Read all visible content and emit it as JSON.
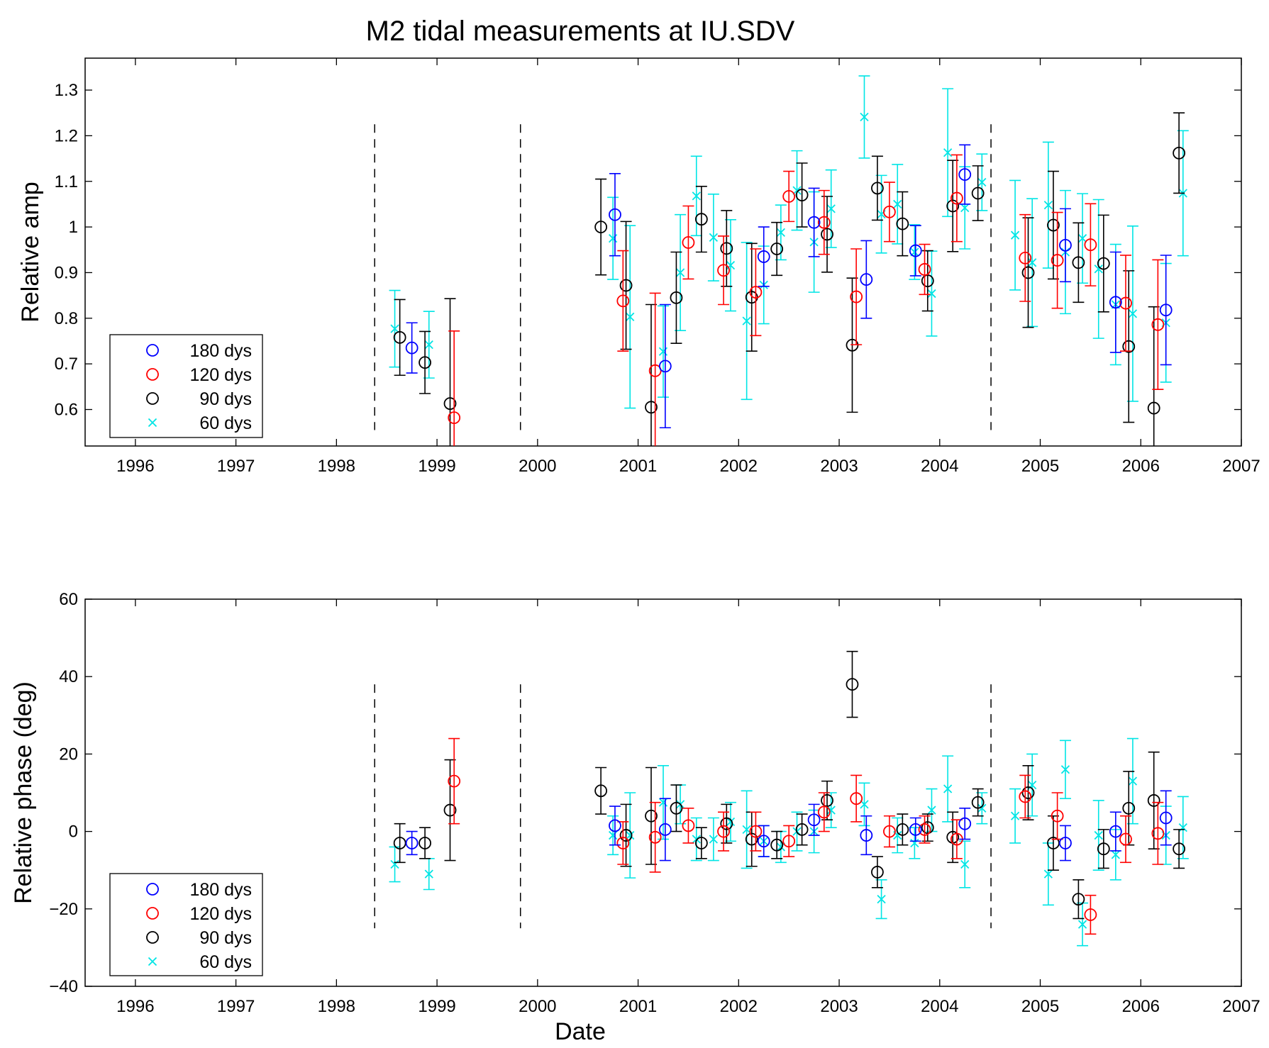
{
  "figure": {
    "title": "M2 tidal measurements at IU.SDV",
    "xlabel": "Date"
  },
  "colors": {
    "180 dys": "#0000ff",
    "120 dys": "#ff0000",
    "90 dys": "#000000",
    "60 dys": "#00e5e5",
    "divider": "#000000"
  },
  "chart_data": [
    {
      "type": "scatter",
      "title": "M2 tidal measurements at IU.SDV",
      "xlabel": "",
      "ylabel": "Relative amp",
      "xlim": [
        1995.5,
        2007
      ],
      "ylim": [
        0.52,
        1.37
      ],
      "xticks": [
        "1996",
        "1997",
        "1998",
        "1999",
        "2000",
        "2001",
        "2002",
        "2003",
        "2004",
        "2005",
        "2006",
        "2007"
      ],
      "yticks": [
        "0.6",
        "0.7",
        "0.8",
        "0.9",
        "1",
        "1.1",
        "1.2",
        "1.3"
      ],
      "grid": false,
      "legend": "bottom-left",
      "dividers": [
        1998.38,
        1999.83,
        2004.51
      ],
      "series": [
        {
          "name": "180 dys",
          "marker": "circle",
          "points": [
            [
              1998.75,
              0.735,
              0.055
            ],
            [
              2000.77,
              1.027,
              0.09
            ],
            [
              2001.27,
              0.695,
              0.135
            ],
            [
              2002.25,
              0.935,
              0.065
            ],
            [
              2002.75,
              1.01,
              0.075
            ],
            [
              2003.27,
              0.885,
              0.085
            ],
            [
              2003.76,
              0.948,
              0.055
            ],
            [
              2004.25,
              1.115,
              0.065
            ],
            [
              2005.25,
              0.96,
              0.08
            ],
            [
              2005.75,
              0.835,
              0.11
            ],
            [
              2006.25,
              0.818,
              0.12
            ]
          ]
        },
        {
          "name": "120 dys",
          "marker": "circle",
          "points": [
            [
              1999.17,
              0.582,
              0.19
            ],
            [
              2000.85,
              0.838,
              0.11
            ],
            [
              2001.17,
              0.685,
              0.17
            ],
            [
              2001.5,
              0.966,
              0.08
            ],
            [
              2001.85,
              0.905,
              0.075
            ],
            [
              2002.17,
              0.857,
              0.095
            ],
            [
              2002.5,
              1.067,
              0.055
            ],
            [
              2002.85,
              1.01,
              0.07
            ],
            [
              2003.17,
              0.847,
              0.105
            ],
            [
              2003.5,
              1.033,
              0.065
            ],
            [
              2003.85,
              0.907,
              0.055
            ],
            [
              2004.17,
              1.063,
              0.095
            ],
            [
              2004.85,
              0.932,
              0.095
            ],
            [
              2005.17,
              0.927,
              0.105
            ],
            [
              2005.5,
              0.961,
              0.09
            ],
            [
              2005.85,
              0.833,
              0.105
            ],
            [
              2006.17,
              0.786,
              0.142
            ]
          ]
        },
        {
          "name": "90 dys",
          "marker": "circle",
          "points": [
            [
              1998.63,
              0.758,
              0.083
            ],
            [
              1998.88,
              0.703,
              0.068
            ],
            [
              1999.13,
              0.613,
              0.23
            ],
            [
              2000.63,
              1.0,
              0.105
            ],
            [
              2000.88,
              0.872,
              0.14
            ],
            [
              2001.13,
              0.605,
              0.225
            ],
            [
              2001.38,
              0.845,
              0.1
            ],
            [
              2001.63,
              1.017,
              0.072
            ],
            [
              2001.88,
              0.953,
              0.083
            ],
            [
              2002.13,
              0.846,
              0.118
            ],
            [
              2002.38,
              0.952,
              0.058
            ],
            [
              2002.63,
              1.07,
              0.07
            ],
            [
              2002.88,
              0.984,
              0.083
            ],
            [
              2003.13,
              0.741,
              0.147
            ],
            [
              2003.38,
              1.085,
              0.07
            ],
            [
              2003.63,
              1.007,
              0.07
            ],
            [
              2003.88,
              0.882,
              0.066
            ],
            [
              2004.13,
              1.046,
              0.1
            ],
            [
              2004.38,
              1.074,
              0.06
            ],
            [
              2004.88,
              0.9,
              0.12
            ],
            [
              2005.13,
              1.004,
              0.118
            ],
            [
              2005.38,
              0.922,
              0.087
            ],
            [
              2005.63,
              0.92,
              0.106
            ],
            [
              2005.88,
              0.738,
              0.166
            ],
            [
              2006.13,
              0.603,
              0.222
            ],
            [
              2006.38,
              1.162,
              0.088
            ]
          ]
        },
        {
          "name": "60 dys",
          "marker": "x",
          "points": [
            [
              1998.58,
              0.777,
              0.084
            ],
            [
              1998.92,
              0.742,
              0.073
            ],
            [
              2000.75,
              0.975,
              0.09
            ],
            [
              2000.92,
              0.803,
              0.2
            ],
            [
              2001.25,
              0.727,
              0.1
            ],
            [
              2001.42,
              0.9,
              0.127
            ],
            [
              2001.58,
              1.068,
              0.087
            ],
            [
              2001.75,
              0.977,
              0.095
            ],
            [
              2001.92,
              0.916,
              0.1
            ],
            [
              2002.08,
              0.794,
              0.172
            ],
            [
              2002.25,
              0.873,
              0.085
            ],
            [
              2002.42,
              0.988,
              0.06
            ],
            [
              2002.58,
              1.08,
              0.087
            ],
            [
              2002.75,
              0.967,
              0.11
            ],
            [
              2002.92,
              1.04,
              0.085
            ],
            [
              2003.25,
              1.241,
              0.09
            ],
            [
              2003.42,
              1.028,
              0.085
            ],
            [
              2003.58,
              1.05,
              0.087
            ],
            [
              2003.75,
              0.945,
              0.06
            ],
            [
              2003.92,
              0.854,
              0.093
            ],
            [
              2004.08,
              1.163,
              0.14
            ],
            [
              2004.25,
              1.042,
              0.09
            ],
            [
              2004.42,
              1.098,
              0.062
            ],
            [
              2004.75,
              0.982,
              0.12
            ],
            [
              2004.92,
              0.922,
              0.14
            ],
            [
              2005.08,
              1.048,
              0.138
            ],
            [
              2005.25,
              0.945,
              0.135
            ],
            [
              2005.42,
              0.975,
              0.098
            ],
            [
              2005.58,
              0.908,
              0.152
            ],
            [
              2005.75,
              0.83,
              0.132
            ],
            [
              2005.92,
              0.81,
              0.192
            ],
            [
              2006.25,
              0.79,
              0.13
            ],
            [
              2006.42,
              1.074,
              0.137
            ]
          ]
        }
      ]
    },
    {
      "type": "scatter",
      "title": "",
      "xlabel": "Date",
      "ylabel": "Relative phase (deg)",
      "xlim": [
        1995.5,
        2007
      ],
      "ylim": [
        -40,
        60
      ],
      "xticks": [
        "1996",
        "1997",
        "1998",
        "1999",
        "2000",
        "2001",
        "2002",
        "2003",
        "2004",
        "2005",
        "2006",
        "2007"
      ],
      "yticks": [
        "−40",
        "−20",
        "0",
        "20",
        "40",
        "60"
      ],
      "grid": false,
      "legend": "bottom-left",
      "dividers": [
        1998.38,
        1999.83,
        2004.51
      ],
      "series": [
        {
          "name": "180 dys",
          "marker": "circle",
          "points": [
            [
              1998.75,
              -3,
              3
            ],
            [
              2000.77,
              1.5,
              5
            ],
            [
              2001.27,
              0.5,
              8
            ],
            [
              2002.25,
              -2.5,
              4
            ],
            [
              2002.75,
              3,
              4
            ],
            [
              2003.27,
              -1,
              5
            ],
            [
              2003.76,
              0.5,
              3
            ],
            [
              2004.25,
              2,
              4
            ],
            [
              2005.25,
              -3,
              4.5
            ],
            [
              2005.75,
              0,
              5
            ],
            [
              2006.25,
              3.5,
              7
            ]
          ]
        },
        {
          "name": "120 dys",
          "marker": "circle",
          "points": [
            [
              1999.17,
              13,
              11
            ],
            [
              2000.85,
              -3,
              5.5
            ],
            [
              2001.17,
              -1.5,
              9
            ],
            [
              2001.5,
              1.5,
              4.5
            ],
            [
              2001.85,
              0,
              5
            ],
            [
              2002.17,
              0,
              5
            ],
            [
              2002.5,
              -2.5,
              4
            ],
            [
              2002.85,
              5,
              5
            ],
            [
              2003.17,
              8.5,
              6
            ],
            [
              2003.5,
              0,
              4
            ],
            [
              2003.85,
              0.5,
              3.5
            ],
            [
              2004.17,
              -2,
              5
            ],
            [
              2004.85,
              9,
              5.5
            ],
            [
              2005.17,
              4,
              6
            ],
            [
              2005.5,
              -21.5,
              5
            ],
            [
              2005.85,
              -2,
              6
            ],
            [
              2006.17,
              -0.5,
              8
            ]
          ]
        },
        {
          "name": "90 dys",
          "marker": "circle",
          "points": [
            [
              1998.63,
              -3,
              5
            ],
            [
              1998.88,
              -3,
              4
            ],
            [
              1999.13,
              5.5,
              13
            ],
            [
              2000.63,
              10.5,
              6
            ],
            [
              2000.88,
              -1,
              8
            ],
            [
              2001.13,
              4,
              12.5
            ],
            [
              2001.38,
              6,
              6
            ],
            [
              2001.63,
              -3,
              4
            ],
            [
              2001.88,
              2,
              5
            ],
            [
              2002.13,
              -2,
              7
            ],
            [
              2002.38,
              -3.5,
              3.5
            ],
            [
              2002.63,
              0.5,
              4
            ],
            [
              2002.88,
              8,
              5
            ],
            [
              2003.13,
              38,
              8.5
            ],
            [
              2003.38,
              -10.5,
              4
            ],
            [
              2003.63,
              0.5,
              4
            ],
            [
              2003.88,
              1,
              3.5
            ],
            [
              2004.13,
              -1.5,
              6.5
            ],
            [
              2004.38,
              7.5,
              3.5
            ],
            [
              2004.88,
              10,
              7
            ],
            [
              2005.13,
              -3,
              7
            ],
            [
              2005.38,
              -17.5,
              5
            ],
            [
              2005.63,
              -4.5,
              5
            ],
            [
              2005.88,
              6,
              9.5
            ],
            [
              2006.13,
              8,
              12.5
            ],
            [
              2006.38,
              -4.5,
              5
            ]
          ]
        },
        {
          "name": "60 dys",
          "marker": "x",
          "points": [
            [
              1998.58,
              -8.5,
              4.5
            ],
            [
              1998.92,
              -11,
              4
            ],
            [
              2000.75,
              -1,
              5
            ],
            [
              2000.92,
              -1,
              11
            ],
            [
              2001.25,
              7.5,
              9.5
            ],
            [
              2001.42,
              7,
              5
            ],
            [
              2001.58,
              -2,
              5.5
            ],
            [
              2001.75,
              -2,
              5.5
            ],
            [
              2001.92,
              2.5,
              5
            ],
            [
              2002.08,
              0.5,
              10
            ],
            [
              2002.25,
              -2.5,
              4
            ],
            [
              2002.42,
              -4,
              4
            ],
            [
              2002.58,
              0,
              5
            ],
            [
              2002.75,
              0,
              5.5
            ],
            [
              2002.92,
              5.5,
              4.5
            ],
            [
              2003.25,
              7,
              5.5
            ],
            [
              2003.42,
              -17.5,
              5
            ],
            [
              2003.58,
              -1,
              4.5
            ],
            [
              2003.75,
              -3,
              4
            ],
            [
              2003.92,
              5.5,
              5.5
            ],
            [
              2004.08,
              11,
              8.5
            ],
            [
              2004.25,
              -8.5,
              6
            ],
            [
              2004.42,
              6,
              4
            ],
            [
              2004.75,
              4,
              7
            ],
            [
              2004.92,
              12,
              8
            ],
            [
              2005.08,
              -11,
              8
            ],
            [
              2005.25,
              16,
              7.5
            ],
            [
              2005.42,
              -24,
              5.5
            ],
            [
              2005.58,
              -1,
              9
            ],
            [
              2005.75,
              -6,
              6.5
            ],
            [
              2005.92,
              13,
              11
            ],
            [
              2006.25,
              -1,
              7.5
            ],
            [
              2006.42,
              1,
              8
            ]
          ]
        }
      ]
    }
  ]
}
